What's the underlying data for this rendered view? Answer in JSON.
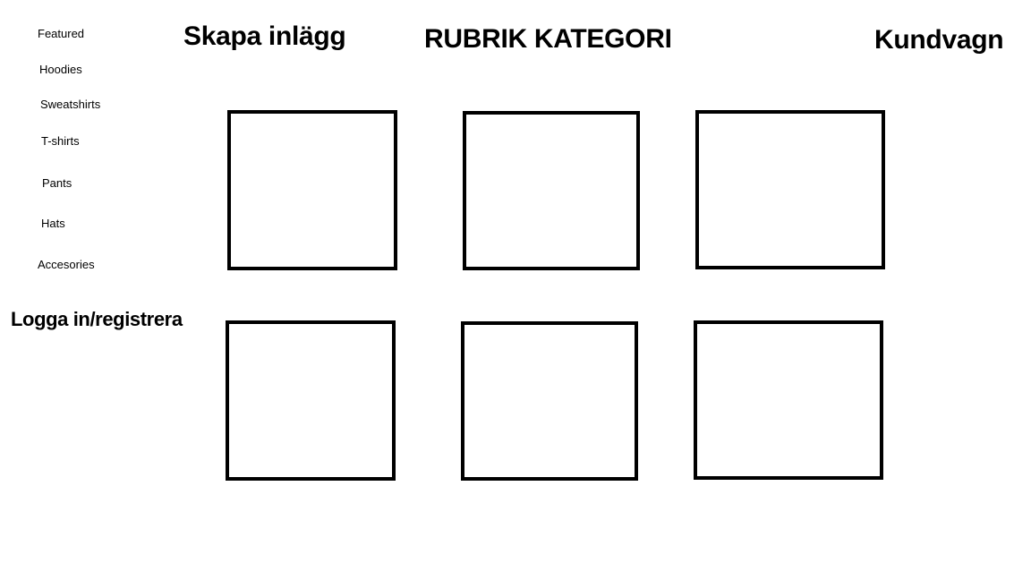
{
  "sidebar": {
    "items": [
      {
        "label": "Featured"
      },
      {
        "label": "Hoodies"
      },
      {
        "label": "Sweatshirts"
      },
      {
        "label": "T-shirts"
      },
      {
        "label": "Pants"
      },
      {
        "label": "Hats"
      },
      {
        "label": "Accesories"
      }
    ],
    "login_label": "Logga in/registrera"
  },
  "header": {
    "create_post_label": "Skapa inlägg",
    "category_title": "RUBRIK KATEGORI",
    "cart_label": "Kundvagn"
  },
  "products": {
    "count": 6
  }
}
